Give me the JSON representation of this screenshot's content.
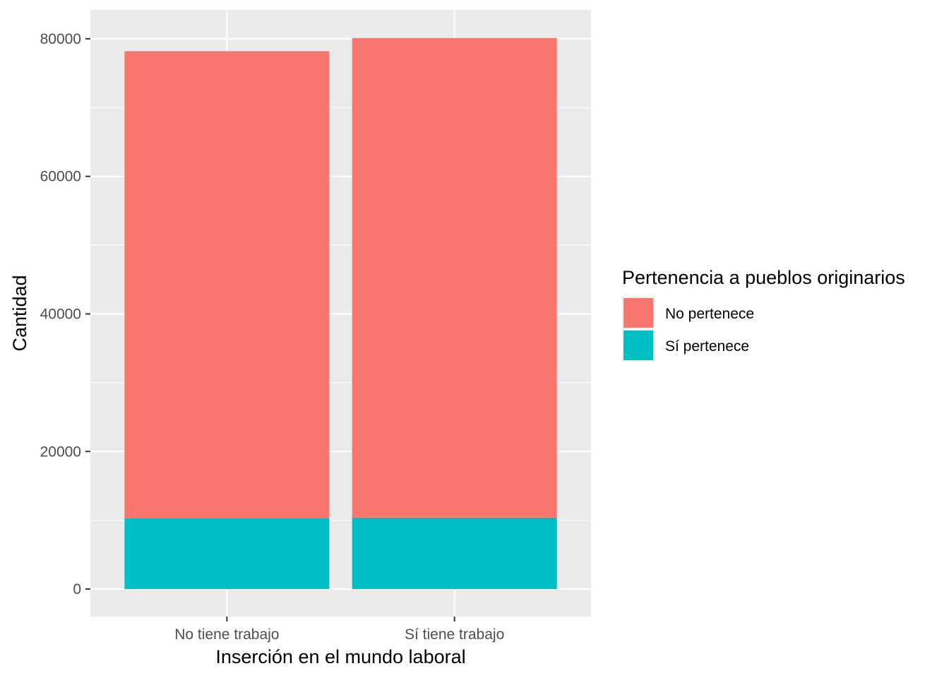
{
  "chart_data": {
    "type": "bar",
    "stacked": true,
    "categories": [
      "No tiene trabajo",
      "Sí tiene trabajo"
    ],
    "series": [
      {
        "name": "No pertenece",
        "values": [
          67900,
          69700
        ],
        "color": "#F8766D"
      },
      {
        "name": "Sí pertenece",
        "values": [
          10300,
          10400
        ],
        "color": "#00BFC4"
      }
    ],
    "xlabel": "Inserción en el mundo laboral",
    "ylabel": "Cantidad",
    "ylim": [
      -4000,
      84200
    ],
    "yticks": [
      0,
      20000,
      40000,
      60000,
      80000
    ],
    "ytick_labels": [
      "0",
      "20000",
      "40000",
      "60000",
      "80000"
    ],
    "legend": {
      "title": "Pertenencia a pueblos originarios",
      "placement": "right"
    },
    "grid": true,
    "panel_background": "#EBEBEB",
    "grid_color": "#FFFFFF"
  }
}
